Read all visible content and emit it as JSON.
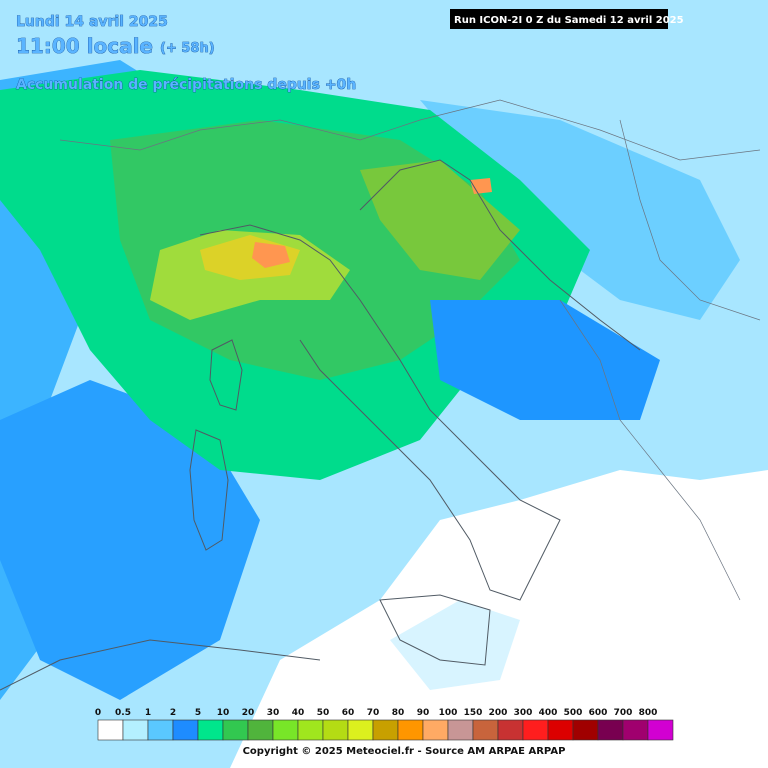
{
  "header": {
    "date": "Lundi 14 avril 2025",
    "time": "11:00 locale",
    "lead": "(+ 58h)",
    "product": "Accumulation de précipitations depuis +0h",
    "run": "Run ICON-2I 0 Z du Samedi 12 avril 2025"
  },
  "legend": {
    "labels": [
      0,
      0.5,
      1,
      2,
      5,
      10,
      20,
      30,
      40,
      50,
      60,
      70,
      80,
      90,
      100,
      150,
      200,
      300,
      400,
      500,
      600,
      700,
      800
    ],
    "colors": [
      "#ffffff",
      "#b4f0ff",
      "#5ac8ff",
      "#1e8cff",
      "#00e68c",
      "#32c850",
      "#50b43c",
      "#78e628",
      "#a0e61e",
      "#b4dc14",
      "#dcf01e",
      "#c8a000",
      "#ff9600",
      "#ffaa64",
      "#c89696",
      "#c8643c",
      "#c83232",
      "#ff1e1e",
      "#dc0000",
      "#a00000",
      "#780050",
      "#a0006e",
      "#d200d2"
    ]
  },
  "footer": "Copyright © 2025 Meteociel.fr - Source AM ARPAE ARPAP"
}
